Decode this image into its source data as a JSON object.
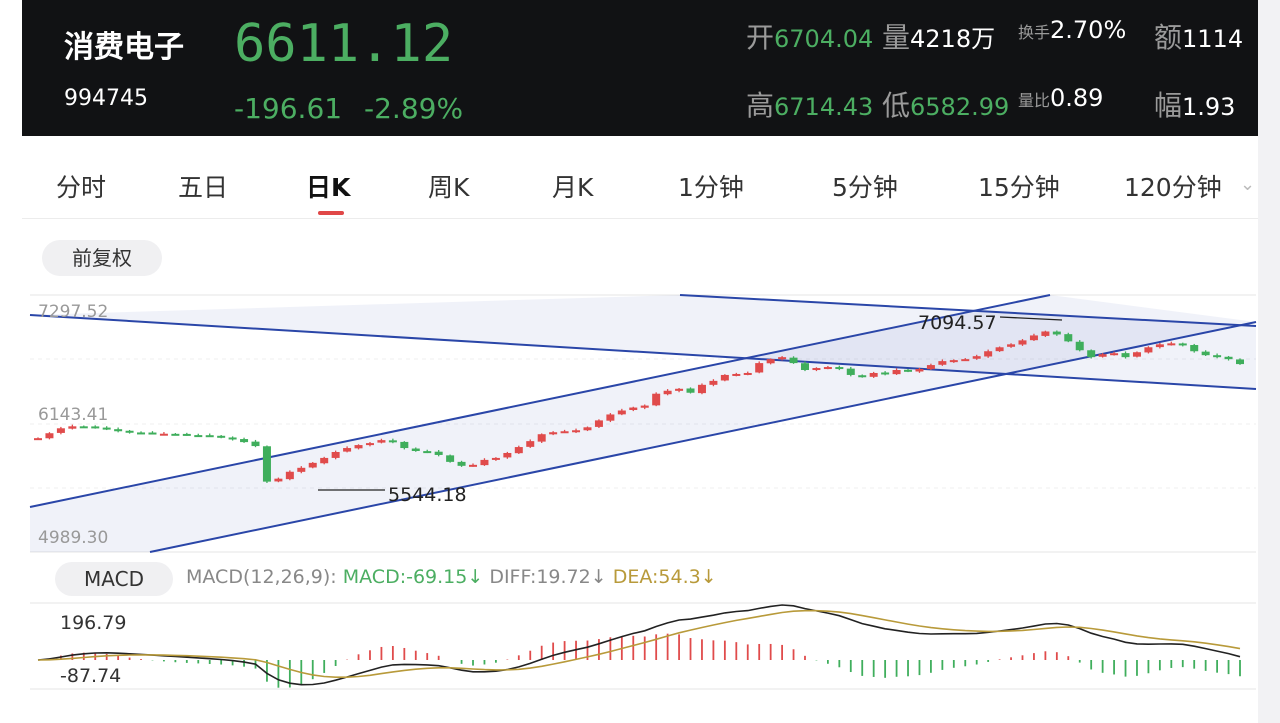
{
  "header": {
    "name": "消费电子",
    "code": "994745",
    "price": "6611.12",
    "change": "-196.61",
    "change_pct": "-2.89%",
    "stats": {
      "open_label": "开",
      "open": "6704.04",
      "volume_label": "量",
      "volume": "4218万",
      "turnover_label": "换手",
      "turnover": "2.70%",
      "amount_label": "额",
      "amount": "1114",
      "high_label": "高",
      "high": "6714.43",
      "low_label": "低",
      "low": "6582.99",
      "vol_ratio_label": "量比",
      "vol_ratio": "0.89",
      "amplitude_label": "幅",
      "amplitude": "1.93"
    }
  },
  "tabs": [
    "分时",
    "五日",
    "日K",
    "周K",
    "月K",
    "1分钟",
    "5分钟",
    "15分钟",
    "120分钟"
  ],
  "active_tab": "日K",
  "adjust_button": "前复权",
  "price_axis": [
    "7297.52",
    "6143.41",
    "4989.30"
  ],
  "annotations": {
    "high": "7094.57",
    "low": "5544.18"
  },
  "macd": {
    "button": "MACD",
    "params": "MACD(12,26,9):",
    "macd": "MACD:-69.15↓",
    "diff": "DIFF:19.72↓",
    "dea": "DEA:54.3↓",
    "axis_top": "196.79",
    "axis_bottom": "-87.74"
  },
  "colors": {
    "up": "#e04b4b",
    "down": "#3fae5c",
    "channel": "#2a46a8",
    "dif_line": "#222222",
    "dea_line": "#b89a3a"
  },
  "chart_data": {
    "type": "candlestick",
    "ylim": [
      4989.3,
      7297.52
    ],
    "close_series": [
      6000,
      6050,
      6100,
      6120,
      6115,
      6110,
      6090,
      6070,
      6060,
      6055,
      6050,
      6045,
      6040,
      6035,
      6030,
      6020,
      6010,
      5990,
      5960,
      5920,
      5560,
      5590,
      5660,
      5700,
      5750,
      5800,
      5860,
      5900,
      5930,
      5950,
      5980,
      5960,
      5900,
      5870,
      5860,
      5830,
      5760,
      5720,
      5730,
      5780,
      5800,
      5850,
      5910,
      5970,
      6040,
      6060,
      6070,
      6080,
      6110,
      6180,
      6240,
      6280,
      6310,
      6330,
      6450,
      6480,
      6500,
      6460,
      6540,
      6580,
      6640,
      6650,
      6660,
      6760,
      6800,
      6820,
      6760,
      6690,
      6710,
      6720,
      6700,
      6640,
      6620,
      6660,
      6650,
      6690,
      6680,
      6700,
      6740,
      6780,
      6790,
      6800,
      6830,
      6880,
      6920,
      6950,
      6990,
      7040,
      7080,
      7050,
      6980,
      6890,
      6820,
      6850,
      6860,
      6820,
      6870,
      6920,
      6950,
      6960,
      6940,
      6880,
      6840,
      6820,
      6800,
      6750
    ]
  }
}
